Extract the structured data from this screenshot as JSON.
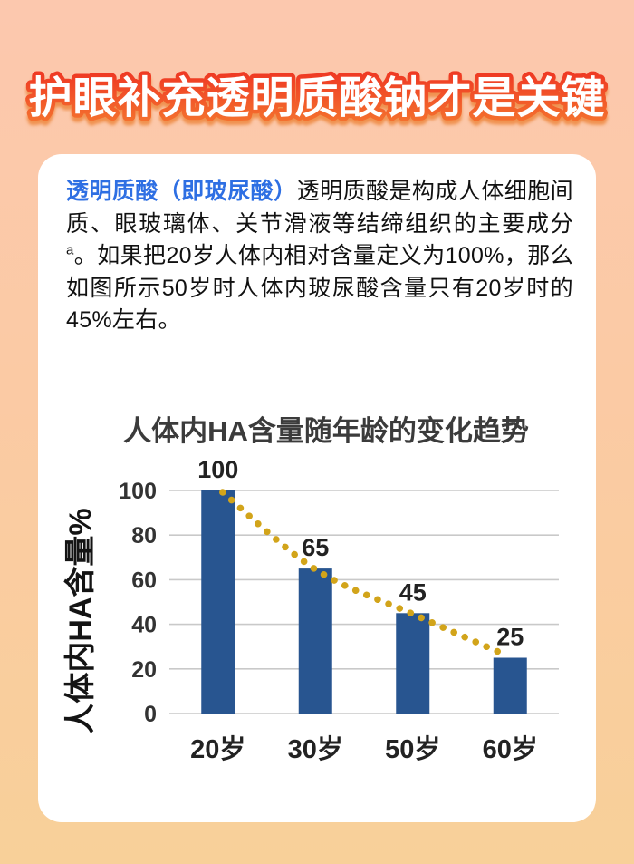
{
  "page": {
    "title": "护眼补充透明质酸钠才是关键"
  },
  "theme": {
    "bg_top": "#fcc8ae",
    "bg_mid": "#fbcaa4",
    "bg_bottom": "#f8d099",
    "card_bg": "#ffffff",
    "title_fill": "#ffffff",
    "title_stroke_top": "#ef3b24",
    "title_stroke_bottom": "#f4722e",
    "title_shadow": "#ee8c46",
    "intro_highlight_color": "#2e6fe3",
    "intro_text_color": "#111111"
  },
  "card": {
    "intro": {
      "highlight": "透明质酸（即玻尿酸）",
      "body1": "透明质酸是构成人体细胞间质、眼玻璃体、关节滑液等结缔组织的主要成分",
      "sup": "a",
      "body2": "。如果把20岁人体内相对含量定义为100%，那么如图所示50岁时人体内玻尿酸含量只有20岁时的45%左右。"
    }
  },
  "chart_data": {
    "type": "bar",
    "title": "人体内HA含量随年龄的变化趋势",
    "categories": [
      "20岁",
      "30岁",
      "50岁",
      "60岁"
    ],
    "values": [
      100,
      65,
      45,
      25
    ],
    "xlabel": "",
    "ylabel": "人体内HA含量%",
    "ylim": [
      0,
      100
    ],
    "yticks": [
      0,
      20,
      40,
      60,
      80,
      100
    ],
    "grid": true,
    "legend": "none",
    "annotations": "每根柱顶标注数值，金色圆点虚线沿柱顶呈下降趋势曲线",
    "trend_series": {
      "name": "trend-dotted-line",
      "values": [
        100,
        65,
        45,
        25
      ],
      "style": "dotted-curve"
    },
    "bar_color": "#285590",
    "trend_color": "#d2a41a",
    "grid_color": "#c9c9c9",
    "title_color": "#3b3b3b",
    "label_color": "#222222"
  }
}
